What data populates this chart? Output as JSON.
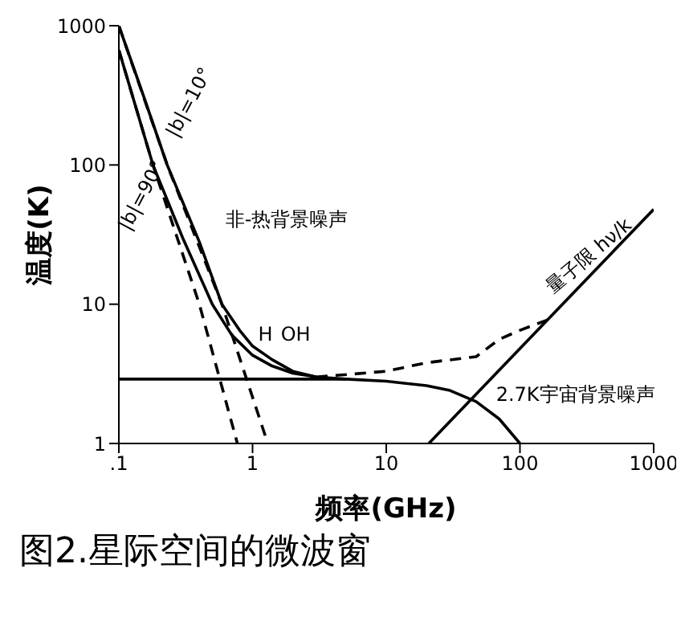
{
  "chart_data": {
    "type": "line",
    "title": "图2.星际空间的微波窗",
    "xlabel": "频率(GHz)",
    "ylabel": "温度(K)",
    "log": "xy",
    "grid": false,
    "marker": "none",
    "xlim": [
      0.1,
      1000
    ],
    "xticks": [
      {
        "value": 0.1,
        "label": ".1"
      },
      1,
      10,
      100,
      1000
    ],
    "ylim": [
      1,
      1000
    ],
    "yticks": [
      1,
      10,
      100,
      1000
    ],
    "series": [
      {
        "color": "#000000",
        "line_style": "solid",
        "x": [
          0.1,
          0.15,
          0.23,
          0.4,
          0.59,
          0.8,
          1,
          1.4,
          2,
          3,
          5
        ],
        "values": [
          1000,
          330,
          100,
          28,
          10,
          6.5,
          5,
          4,
          3.3,
          3.0,
          2.9
        ]
      },
      {
        "color": "#000000",
        "line_style": "solid",
        "x": [
          0.1,
          0.18,
          0.3,
          0.5,
          0.7,
          1,
          1.4,
          2,
          3
        ],
        "values": [
          670,
          100,
          30,
          10,
          6,
          4.3,
          3.6,
          3.2,
          3.0
        ]
      },
      {
        "color": "#000000",
        "line_style": "dashed",
        "x": [
          0.1,
          0.23,
          0.59,
          1.3
        ],
        "values": [
          1000,
          100,
          10,
          1
        ]
      },
      {
        "color": "#000000",
        "line_style": "dashed",
        "x": [
          0.1,
          0.18,
          0.4,
          0.77
        ],
        "values": [
          670,
          100,
          10,
          1
        ]
      },
      {
        "color": "#000000",
        "line_style": "solid",
        "x": [
          0.1,
          1,
          5,
          10,
          20,
          30,
          47,
          70,
          100
        ],
        "values": [
          2.9,
          2.9,
          2.9,
          2.8,
          2.6,
          2.4,
          2.0,
          1.5,
          1.0
        ]
      },
      {
        "color": "#000000",
        "line_style": "solid",
        "x": [
          20.8,
          1000
        ],
        "values": [
          1,
          48
        ]
      },
      {
        "color": "#000000",
        "line_style": "dashed",
        "x": [
          3,
          10,
          20,
          47,
          70,
          100,
          160
        ],
        "values": [
          3.0,
          3.3,
          3.8,
          4.2,
          5.6,
          6.5,
          7.7
        ]
      }
    ],
    "annotations": [
      "|b|=10°",
      "|b|=90°",
      "非-热背景噪声",
      "H",
      "OH",
      "量子限 hν/k",
      "2.7K宇宙背景噪声"
    ]
  }
}
